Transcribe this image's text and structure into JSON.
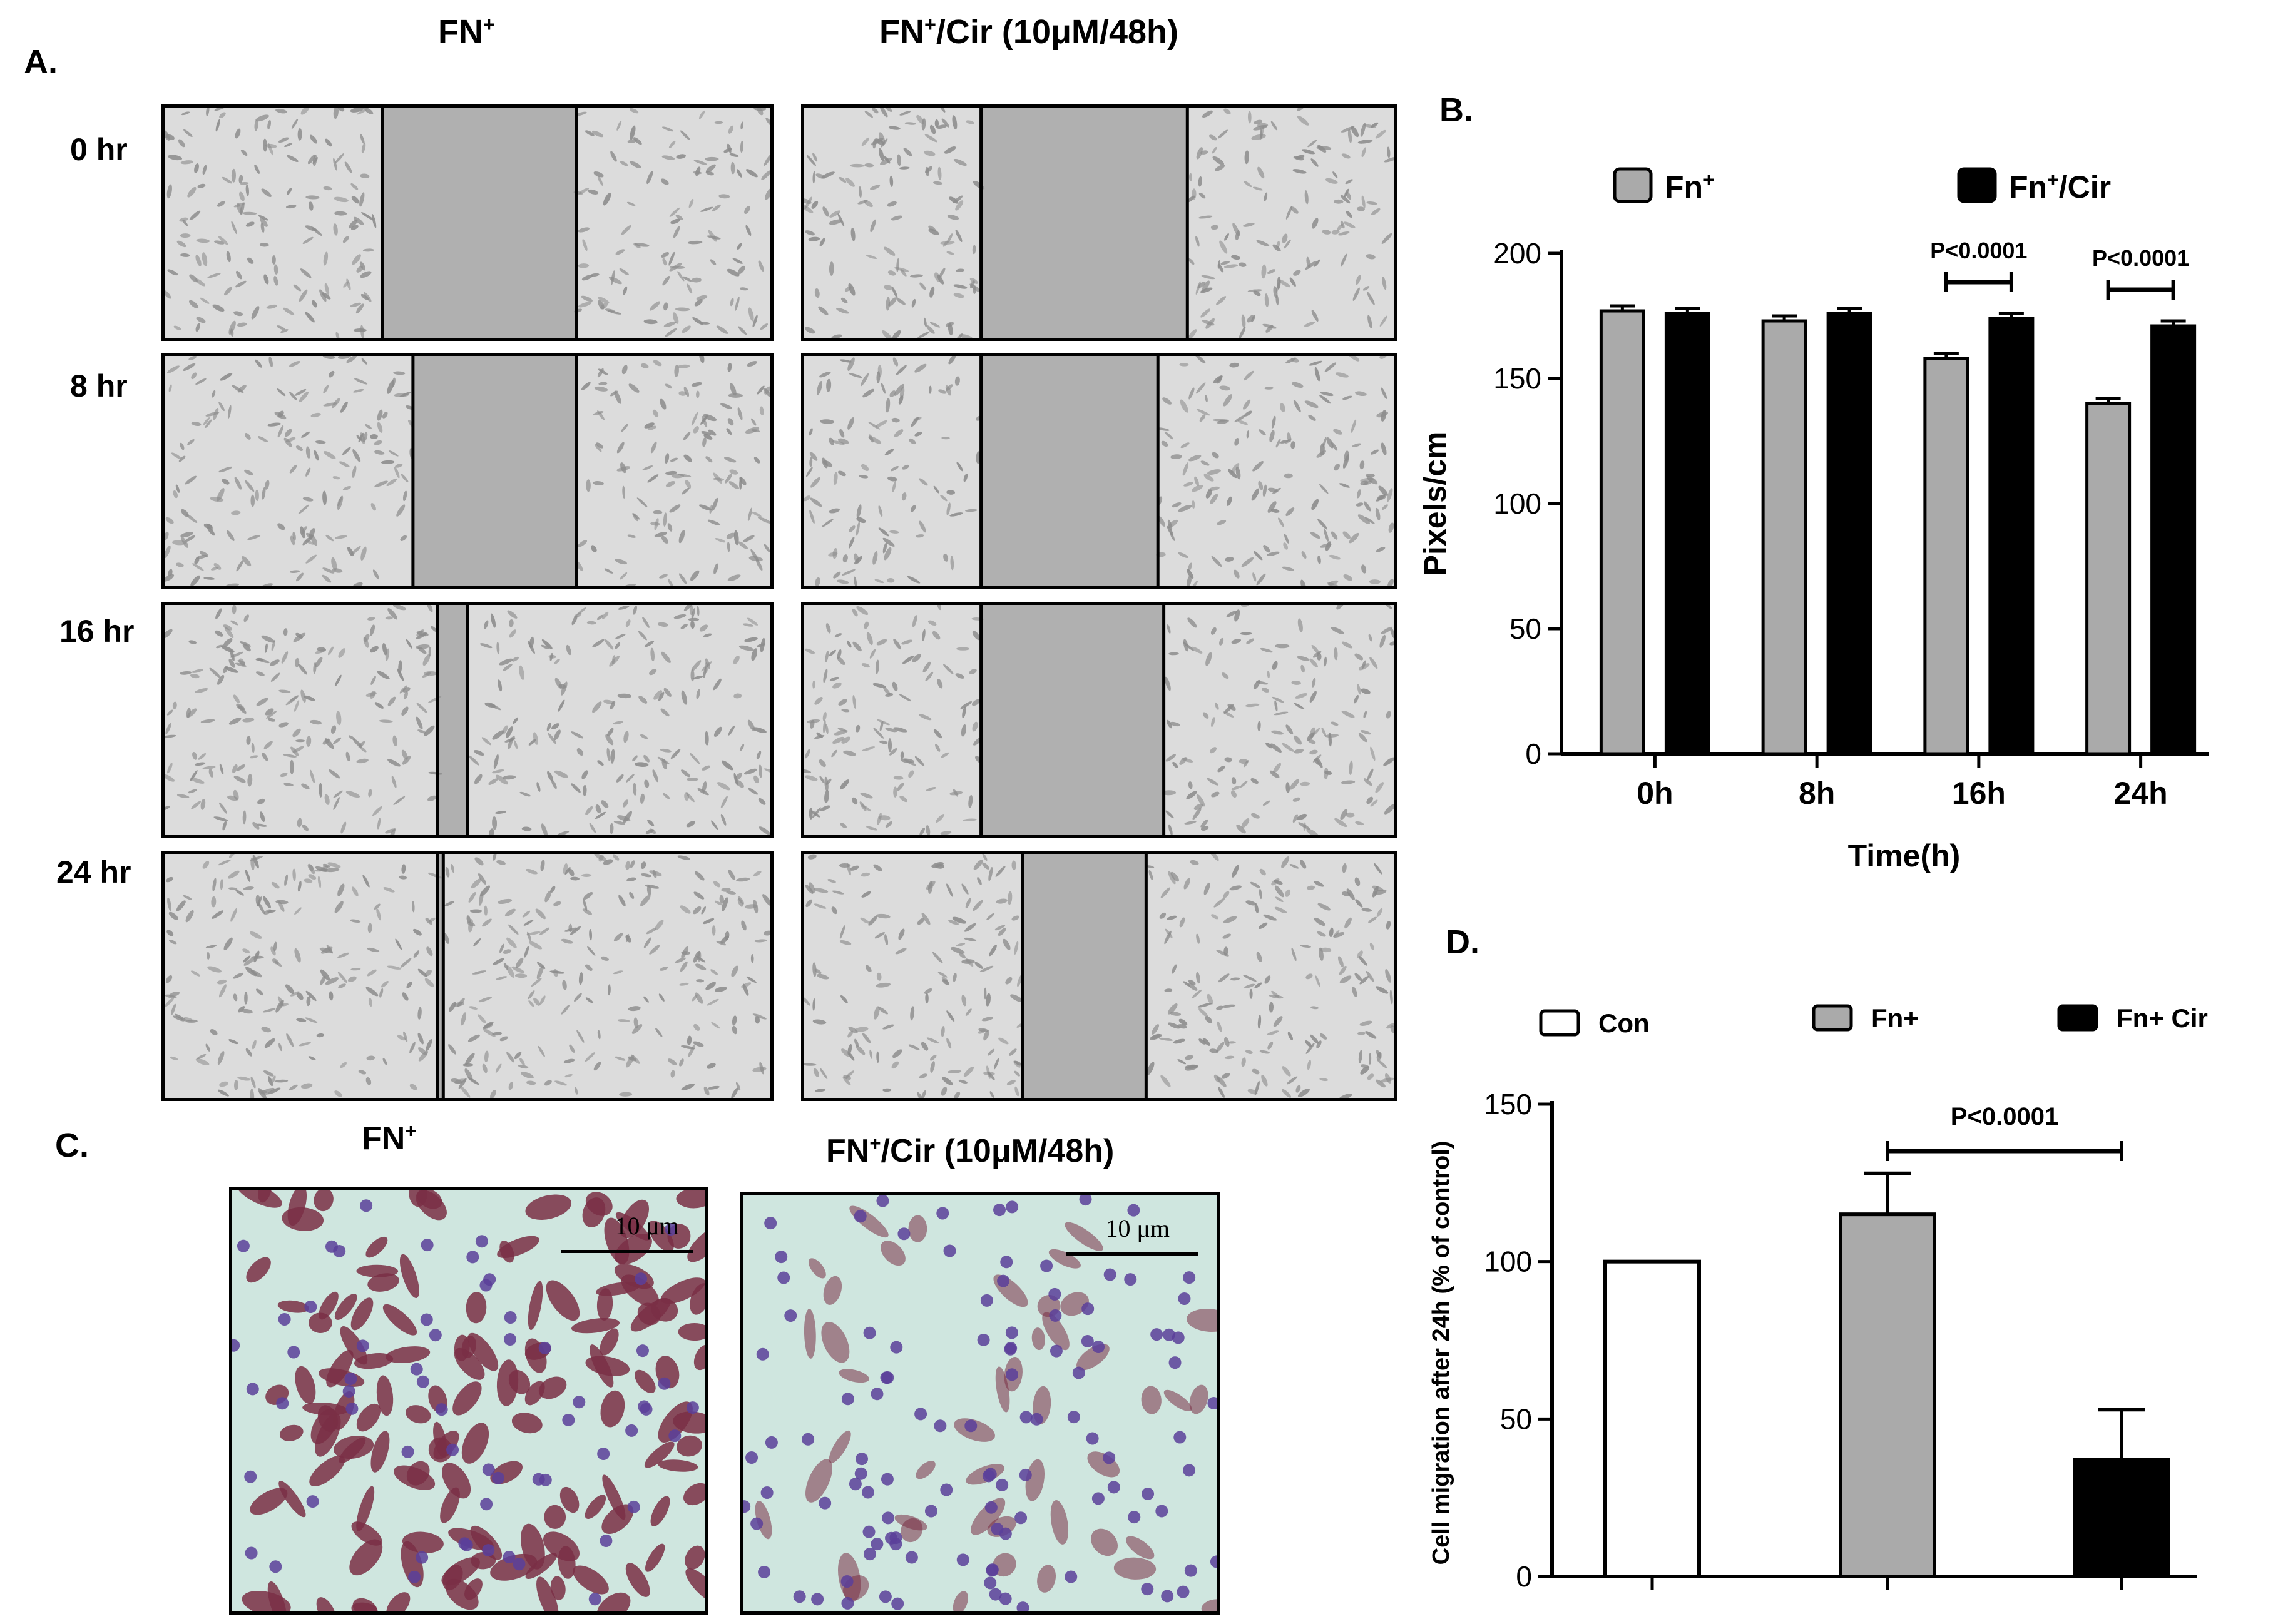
{
  "panel_a": {
    "label": "A.",
    "col_titles": [
      {
        "base": "FN",
        "sup": "+",
        "rest": ""
      },
      {
        "base": "FN",
        "sup": "+",
        "rest": "/Cir (10μM/48h)"
      }
    ],
    "row_labels": [
      "0 hr",
      "8 hr",
      "16 hr",
      "24 hr"
    ],
    "colors": {
      "cells": "#8c8c8c",
      "gap": "#b0b0b0",
      "border": "#000000"
    }
  },
  "panel_c": {
    "label": "C.",
    "titles": [
      {
        "base": "FN",
        "sup": "+",
        "rest": ""
      },
      {
        "base": "FN",
        "sup": "+",
        "rest": "/Cir (10μM/48h)"
      }
    ],
    "scale_bar_label": "10 μm",
    "colors": {
      "background": "#cfe6df",
      "cells": "#7a2f45",
      "nuclei": "#5a3f9a"
    }
  },
  "panel_b": {
    "label": "B.",
    "chart_data": {
      "type": "bar",
      "categories": [
        "0h",
        "8h",
        "16h",
        "24h"
      ],
      "series": [
        {
          "name": "Fn",
          "name_sup": "+",
          "name_rest": "",
          "color": "#aaaaaa",
          "values": [
            177,
            173,
            158,
            140
          ],
          "errors": [
            2,
            2,
            2,
            2
          ]
        },
        {
          "name": "Fn",
          "name_sup": "+",
          "name_rest": "/Cir",
          "color": "#000000",
          "values": [
            176,
            176,
            174,
            171
          ],
          "errors": [
            2,
            2,
            2,
            2
          ]
        }
      ],
      "xlabel": "Time(h)",
      "ylabel": "Pixels/cm",
      "ylim": [
        0,
        200
      ],
      "yticks": [
        0,
        50,
        100,
        150,
        200
      ],
      "annotations": [
        {
          "category": "16h",
          "text": "P<0.0001"
        },
        {
          "category": "24h",
          "text": "P<0.0001"
        }
      ],
      "legend": "top",
      "grid": false
    }
  },
  "panel_d": {
    "label": "D.",
    "chart_data": {
      "type": "bar",
      "categories": [
        "Con",
        "Fn+",
        "Fn+ Cir"
      ],
      "values": [
        100,
        115,
        37
      ],
      "errors": [
        0,
        13,
        16
      ],
      "colors": [
        "#ffffff",
        "#aaaaaa",
        "#000000"
      ],
      "legend_labels": [
        "Con",
        "Fn+",
        "Fn+ Cir"
      ],
      "ylabel": "Cell migration after 24h (% of control)",
      "ylim": [
        0,
        150
      ],
      "yticks": [
        0,
        50,
        100,
        150
      ],
      "annotations": [
        {
          "from": "Fn+",
          "to": "Fn+ Cir",
          "text": "P<0.0001"
        }
      ],
      "legend": "top",
      "grid": false
    }
  }
}
